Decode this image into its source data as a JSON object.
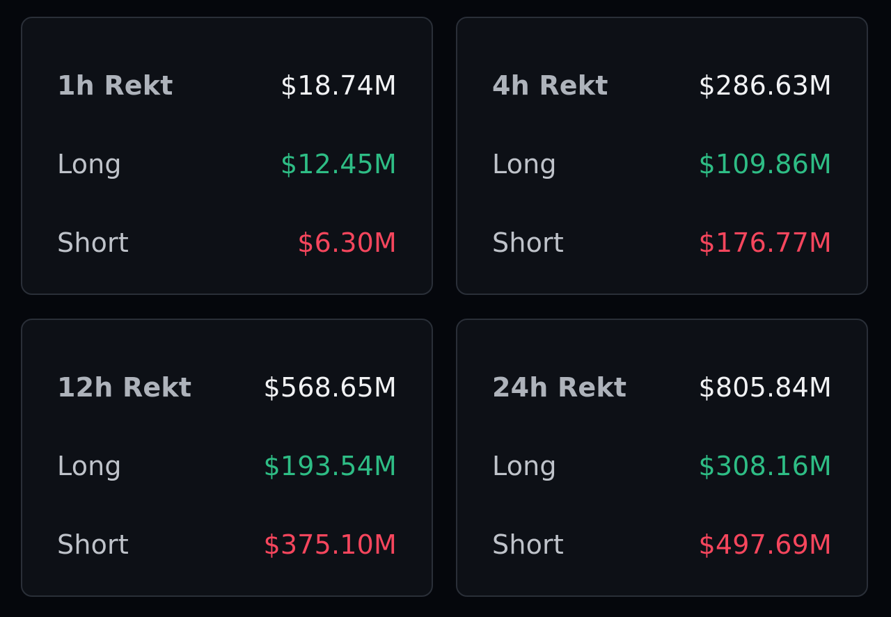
{
  "colors": {
    "background": "#05070c",
    "card": "#0d1016",
    "border": "#2a2f38",
    "total": "#f1f2f4",
    "long": "#2ebd85",
    "short": "#f6465d"
  },
  "cards": [
    {
      "title": "1h Rekt",
      "total": "$18.74M",
      "long_label": "Long",
      "long": "$12.45M",
      "short_label": "Short",
      "short": "$6.30M"
    },
    {
      "title": "4h Rekt",
      "total": "$286.63M",
      "long_label": "Long",
      "long": "$109.86M",
      "short_label": "Short",
      "short": "$176.77M"
    },
    {
      "title": "12h Rekt",
      "total": "$568.65M",
      "long_label": "Long",
      "long": "$193.54M",
      "short_label": "Short",
      "short": "$375.10M"
    },
    {
      "title": "24h Rekt",
      "total": "$805.84M",
      "long_label": "Long",
      "long": "$308.16M",
      "short_label": "Short",
      "short": "$497.69M"
    }
  ]
}
